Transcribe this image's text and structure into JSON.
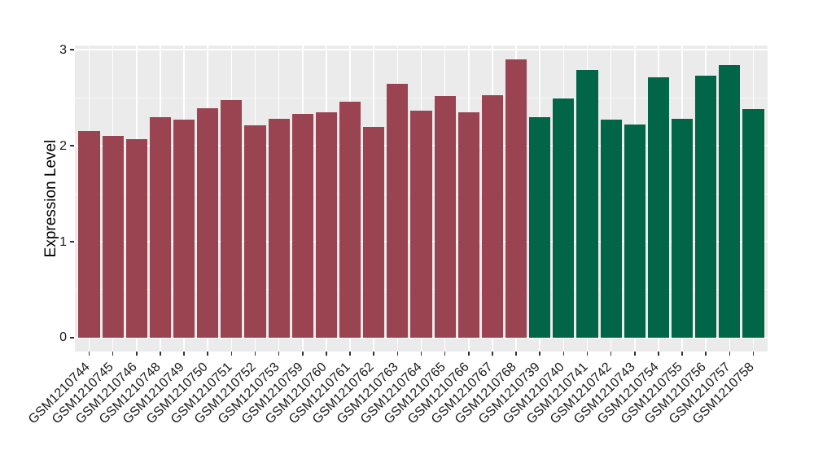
{
  "chart_data": {
    "type": "bar",
    "ylabel": "Expression Level",
    "xlabel": "",
    "ylim": [
      0,
      3
    ],
    "yticks": [
      0,
      1,
      2,
      3
    ],
    "yticks_minor": [
      0.5,
      1.5,
      2.5
    ],
    "grid": "white major and minor gridlines on gray panel",
    "legend": "none",
    "x_label_rotation_deg": 45,
    "categories": [
      "GSM1210744",
      "GSM1210745",
      "GSM1210746",
      "GSM1210748",
      "GSM1210749",
      "GSM1210750",
      "GSM1210751",
      "GSM1210752",
      "GSM1210753",
      "GSM1210759",
      "GSM1210760",
      "GSM1210761",
      "GSM1210762",
      "GSM1210763",
      "GSM1210764",
      "GSM1210765",
      "GSM1210766",
      "GSM1210767",
      "GSM1210768",
      "GSM1210739",
      "GSM1210740",
      "GSM1210741",
      "GSM1210742",
      "GSM1210743",
      "GSM1210754",
      "GSM1210755",
      "GSM1210756",
      "GSM1210757",
      "GSM1210758"
    ],
    "values": [
      2.15,
      2.1,
      2.07,
      2.3,
      2.27,
      2.39,
      2.48,
      2.21,
      2.28,
      2.33,
      2.35,
      2.46,
      2.2,
      2.65,
      2.37,
      2.52,
      2.35,
      2.53,
      2.9,
      2.3,
      2.49,
      2.79,
      2.27,
      2.22,
      2.71,
      2.28,
      2.73,
      2.84,
      2.38
    ],
    "bar_color_groups": [
      {
        "color": "#9A4351",
        "count": 19
      },
      {
        "color": "#006647",
        "count": 10
      }
    ]
  },
  "style": {
    "panel_background": "#EBEBEB",
    "gridline_color": "#FFFFFF",
    "tick_mark_color": "#333333",
    "axis_text_color": "#1A1A1A",
    "figure_background": "#FFFFFF"
  }
}
